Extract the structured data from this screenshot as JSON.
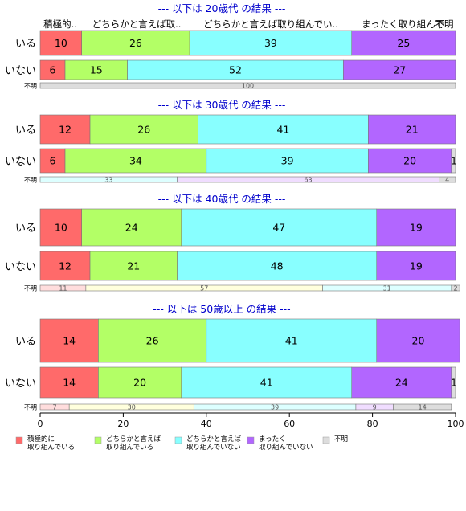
{
  "chart_data": {
    "type": "bar",
    "orientation": "horizontal-stacked-percent",
    "xlim": [
      0,
      100
    ],
    "x_ticks": [
      "0",
      "20",
      "40",
      "60",
      "80",
      "100"
    ],
    "colors": {
      "full": [
        "#FF6A6A",
        "#B3FF66",
        "#88FFFF",
        "#B266FF",
        "#DDDDDD"
      ],
      "light": [
        "#FFDDDD",
        "#FFFFDD",
        "#DDFFFF",
        "#F0DDFF",
        "#DDDDDD"
      ]
    },
    "top_header_labels": [
      "積極的..",
      "どちらかと言えば取..",
      "どちらかと言えば取り組んでい..",
      "まったく取り組んで..",
      "不明"
    ],
    "legend": [
      {
        "line1": "積極的に",
        "line2": "取り組んでいる"
      },
      {
        "line1": "どちらかと言えば",
        "line2": "取り組んでいる"
      },
      {
        "line1": "どちらかと言えば",
        "line2": "取り組んでいない"
      },
      {
        "line1": "まったく",
        "line2": "取り組んでいない"
      },
      {
        "line1": "不明",
        "line2": ""
      }
    ],
    "groups": [
      {
        "title": "--- 以下は 20歳代 の結果 ---",
        "rows": [
          {
            "label": "いる",
            "values": [
              10,
              26,
              39,
              25,
              0
            ],
            "value_labels": [
              "10",
              "26",
              "39",
              "25",
              ""
            ]
          },
          {
            "label": "いない",
            "values": [
              6,
              15,
              52,
              27,
              0
            ],
            "value_labels": [
              "6",
              "15",
              "52",
              "27",
              ""
            ]
          }
        ],
        "unknown_row": {
          "label": "不明",
          "values": [
            0,
            0,
            0,
            0,
            100
          ],
          "value_labels": [
            "",
            "",
            "",
            "",
            "100"
          ]
        }
      },
      {
        "title": "--- 以下は 30歳代 の結果 ---",
        "rows": [
          {
            "label": "いる",
            "values": [
              12,
              26,
              41,
              21,
              0
            ],
            "value_labels": [
              "12",
              "26",
              "41",
              "21",
              ""
            ]
          },
          {
            "label": "いない",
            "values": [
              6,
              34,
              39,
              20,
              1
            ],
            "value_labels": [
              "6",
              "34",
              "39",
              "20",
              "1"
            ]
          }
        ],
        "unknown_row": {
          "label": "不明",
          "values": [
            0,
            0,
            33,
            63,
            4
          ],
          "value_labels": [
            "",
            "",
            "33",
            "63",
            "4"
          ]
        }
      },
      {
        "title": "--- 以下は 40歳代 の結果 ---",
        "rows": [
          {
            "label": "いる",
            "values": [
              10,
              24,
              47,
              19,
              0
            ],
            "value_labels": [
              "10",
              "24",
              "47",
              "19",
              ""
            ]
          },
          {
            "label": "いない",
            "values": [
              12,
              21,
              48,
              19,
              0
            ],
            "value_labels": [
              "12",
              "21",
              "48",
              "19",
              ""
            ]
          }
        ],
        "unknown_row": {
          "label": "不明",
          "values": [
            11,
            57,
            31,
            0,
            2
          ],
          "value_labels": [
            "11",
            "57",
            "31",
            "",
            "2"
          ]
        }
      },
      {
        "title": "--- 以下は 50歳以上 の結果 ---",
        "rows": [
          {
            "label": "いる",
            "values": [
              14,
              26,
              41,
              20,
              0
            ],
            "value_labels": [
              "14",
              "26",
              "41",
              "20",
              ""
            ]
          },
          {
            "label": "いない",
            "values": [
              14,
              20,
              41,
              24,
              1
            ],
            "value_labels": [
              "14",
              "20",
              "41",
              "24",
              "1"
            ]
          }
        ],
        "unknown_row": {
          "label": "不明",
          "values": [
            7,
            30,
            39,
            9,
            14
          ],
          "value_labels": [
            "7",
            "30",
            "39",
            "9",
            "14"
          ]
        }
      }
    ]
  }
}
